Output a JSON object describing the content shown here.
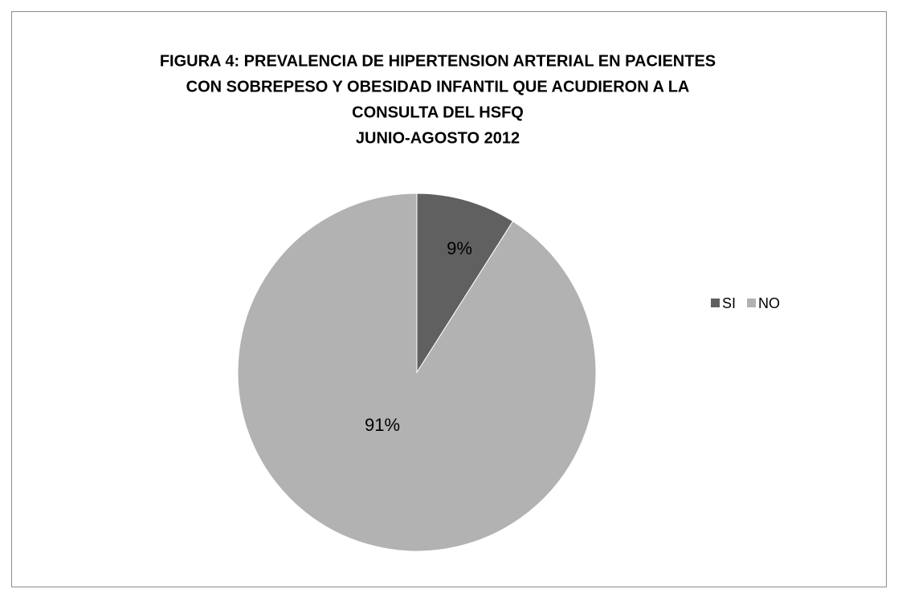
{
  "chart_data": {
    "type": "pie",
    "title": [
      "FIGURA 4: PREVALENCIA DE HIPERTENSION ARTERIAL EN PACIENTES",
      "CON SOBREPESO Y OBESIDAD INFANTIL QUE ACUDIERON A LA",
      "CONSULTA DEL HSFQ",
      "JUNIO-AGOSTO 2012"
    ],
    "categories": [
      "SI",
      "NO"
    ],
    "values": [
      9,
      91
    ],
    "value_labels": [
      "9%",
      "91%"
    ],
    "colors": [
      "#606060",
      "#b2b2b2"
    ],
    "legend": "right"
  }
}
